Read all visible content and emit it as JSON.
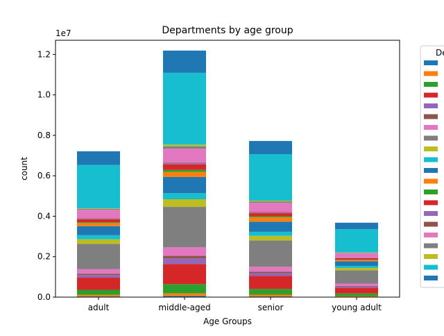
{
  "chart_data": {
    "type": "bar",
    "stacked": true,
    "title": "Departments by age group",
    "xlabel": "Age Groups",
    "ylabel": "count",
    "y_offset_label": "1e7",
    "y_scale_factor": 10000000,
    "categories": [
      "adult",
      "middle-aged",
      "senior",
      "young adult"
    ],
    "ylim": [
      0,
      12700000
    ],
    "yticks": [
      0,
      2000000,
      4000000,
      6000000,
      8000000,
      10000000,
      12000000
    ],
    "ytick_labels": [
      "0.0",
      "0.2",
      "0.4",
      "0.6",
      "0.8",
      "1.0",
      "1.2"
    ],
    "grid": false,
    "legend": {
      "title": "De",
      "placement": "right outside (clipped)"
    },
    "series": [
      {
        "color": "#1f77b4",
        "values": [
          30000,
          60000,
          30000,
          20000
        ]
      },
      {
        "color": "#ff7f0e",
        "values": [
          80000,
          130000,
          90000,
          30000
        ]
      },
      {
        "color": "#2ca02c",
        "values": [
          250000,
          450000,
          280000,
          130000
        ]
      },
      {
        "color": "#d62728",
        "values": [
          600000,
          1000000,
          650000,
          280000
        ]
      },
      {
        "color": "#9467bd",
        "values": [
          130000,
          270000,
          130000,
          60000
        ]
      },
      {
        "color": "#8c564b",
        "values": [
          70000,
          130000,
          80000,
          30000
        ]
      },
      {
        "color": "#e377c2",
        "values": [
          220000,
          420000,
          240000,
          120000
        ]
      },
      {
        "color": "#7f7f7f",
        "values": [
          1250000,
          2000000,
          1300000,
          650000
        ]
      },
      {
        "color": "#bcbd22",
        "values": [
          230000,
          380000,
          230000,
          120000
        ]
      },
      {
        "color": "#17becf",
        "values": [
          200000,
          300000,
          200000,
          100000
        ]
      },
      {
        "color": "#1f77b4",
        "values": [
          450000,
          800000,
          500000,
          230000
        ]
      },
      {
        "color": "#ff7f0e",
        "values": [
          150000,
          250000,
          220000,
          60000
        ]
      },
      {
        "color": "#2ca02c",
        "values": [
          40000,
          100000,
          50000,
          20000
        ]
      },
      {
        "color": "#d62728",
        "values": [
          150000,
          270000,
          150000,
          80000
        ]
      },
      {
        "color": "#9467bd",
        "values": [
          20000,
          40000,
          30000,
          10000
        ]
      },
      {
        "color": "#8c564b",
        "values": [
          30000,
          40000,
          30000,
          10000
        ]
      },
      {
        "color": "#e377c2",
        "values": [
          420000,
          700000,
          450000,
          220000
        ]
      },
      {
        "color": "#7f7f7f",
        "values": [
          40000,
          120000,
          60000,
          20000
        ]
      },
      {
        "color": "#bcbd22",
        "values": [
          30000,
          80000,
          50000,
          20000
        ]
      },
      {
        "color": "#17becf",
        "values": [
          2150000,
          3550000,
          2300000,
          1150000
        ]
      },
      {
        "color": "#1f77b4",
        "values": [
          670000,
          1100000,
          650000,
          320000
        ]
      }
    ]
  }
}
